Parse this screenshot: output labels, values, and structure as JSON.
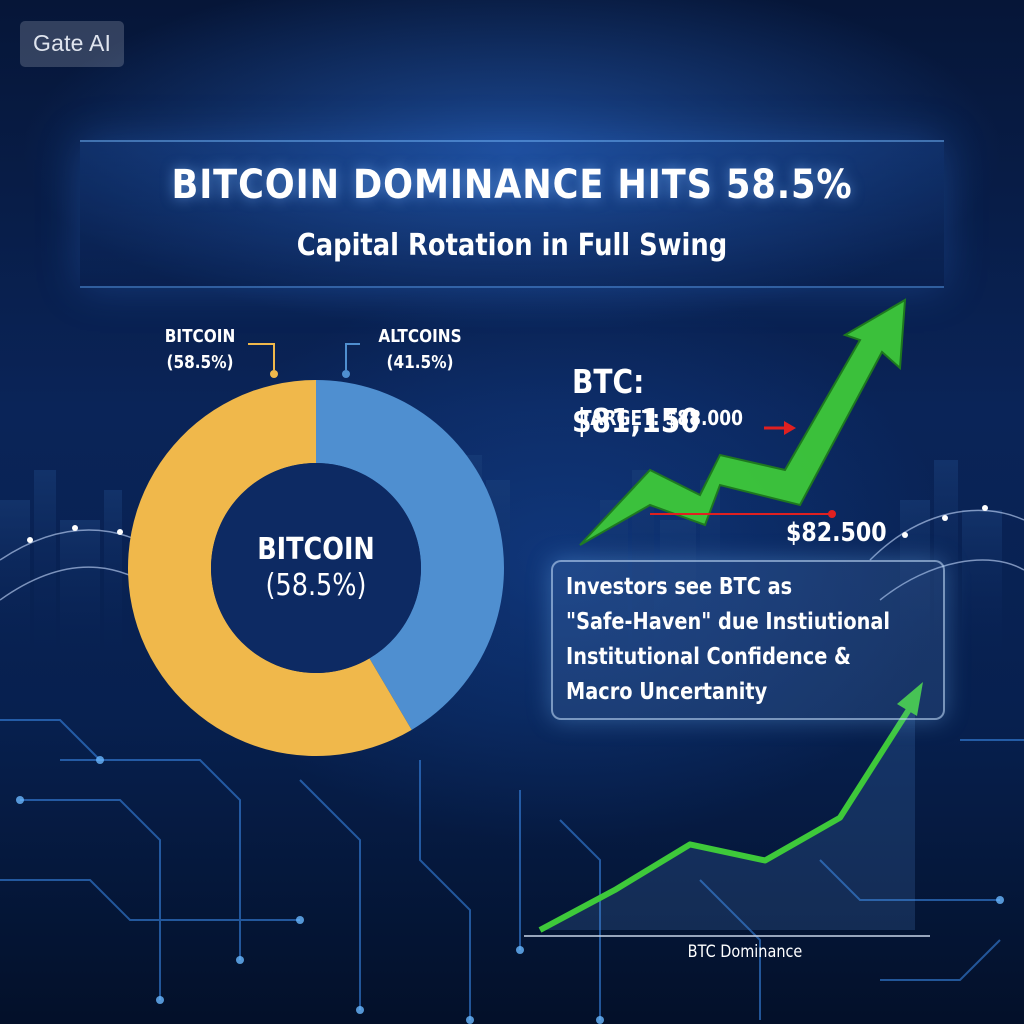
{
  "watermark": "Gate AI",
  "header": {
    "title": "BITCOIN DOMINANCE HITS 58.5%",
    "subtitle": "Capital Rotation in Full Swing"
  },
  "colors": {
    "bitcoin": "#f0b84b",
    "altcoins": "#4f8fd0",
    "up_arrow": "#3ec93a",
    "target_arrow": "#e02020"
  },
  "price_panel": {
    "price": "BTC: $81,150",
    "target": "TARGET: $88.000",
    "level": "$82.500"
  },
  "info": {
    "lines": [
      "Investors see BTC as",
      "\"Safe-Haven\" due Instiutional",
      "Institutional Confidence &",
      "Macro Uncertanity"
    ]
  },
  "chart_data": [
    {
      "type": "pie",
      "title": "",
      "center_label": "BITCOIN",
      "center_value": "(58.5%)",
      "labels": [
        "BITCOIN",
        "ALTCOINS"
      ],
      "display_values": [
        "(58.5%)",
        "(41.5%)"
      ],
      "values": [
        58.5,
        41.5
      ],
      "donut": true
    },
    {
      "type": "line",
      "xlabel": "BTC Dominance",
      "ylabel": "",
      "y": [
        0,
        1.5,
        3.2,
        2.6,
        4.2,
        8.6
      ],
      "arrow_end": true
    }
  ]
}
